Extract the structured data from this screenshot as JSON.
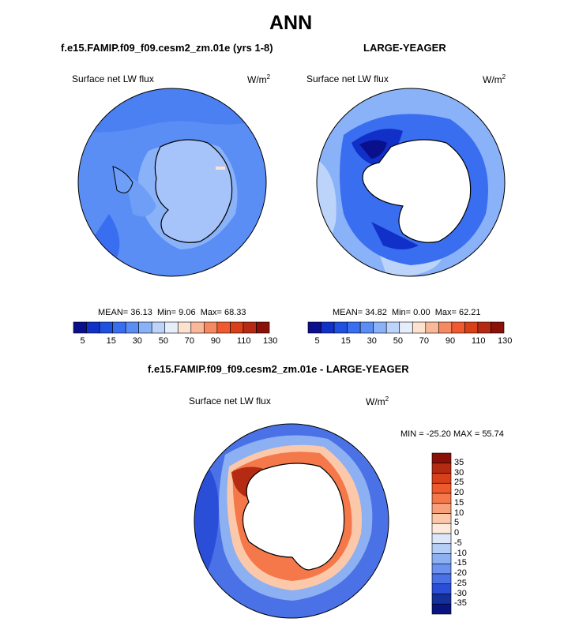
{
  "title": "ANN",
  "panels": [
    {
      "id": "model",
      "case_title": "f.e15.FAMIP.f09_f09.cesm2_zm.01e (yrs 1-8)",
      "variable": "Surface net LW flux",
      "units_base": "W/m",
      "units_exp": "2",
      "stats": {
        "mean_label": "MEAN=",
        "mean": "36.13",
        "min_label": "Min=",
        "min": "9.06",
        "max_label": "Max=",
        "max": "68.33"
      },
      "colorbar_ticks": [
        "5",
        "15",
        "30",
        "50",
        "70",
        "90",
        "110",
        "130"
      ]
    },
    {
      "id": "obs",
      "case_title": "LARGE-YEAGER",
      "variable": "Surface net LW flux",
      "units_base": "W/m",
      "units_exp": "2",
      "stats": {
        "mean_label": "MEAN=",
        "mean": "34.82",
        "min_label": "Min=",
        "min": "0.00",
        "max_label": "Max=",
        "max": "62.21"
      },
      "colorbar_ticks": [
        "5",
        "15",
        "30",
        "50",
        "70",
        "90",
        "110",
        "130"
      ]
    }
  ],
  "diff": {
    "case_title": "f.e15.FAMIP.f09_f09.cesm2_zm.01e - LARGE-YEAGER",
    "variable": "Surface net LW flux",
    "units_base": "W/m",
    "units_exp": "2",
    "minmax": "MIN = -25.20 MAX =  55.74",
    "colorbar_ticks": [
      "35",
      "30",
      "25",
      "20",
      "15",
      "10",
      "5",
      "0",
      "-5",
      "-10",
      "-15",
      "-20",
      "-25",
      "-30",
      "-35"
    ]
  },
  "colors": {
    "seq": [
      "#0a0f8c",
      "#1030c8",
      "#2050e0",
      "#3a6ef0",
      "#5a8ef5",
      "#8ab2f8",
      "#bcd4fa",
      "#e6eefc",
      "#fde2d0",
      "#f9b89a",
      "#f58a62",
      "#ef5a30",
      "#d8401a",
      "#b42a12",
      "#8a1008"
    ],
    "div": [
      "#8a1008",
      "#b42a12",
      "#d8401a",
      "#ee5a2c",
      "#f4784a",
      "#f8a07a",
      "#fcc8aa",
      "#fdeadc",
      "#dce8fa",
      "#b4cef6",
      "#8cb0f2",
      "#6a92ee",
      "#4a72e6",
      "#2a4ed8",
      "#14309a",
      "#0a1480"
    ]
  }
}
